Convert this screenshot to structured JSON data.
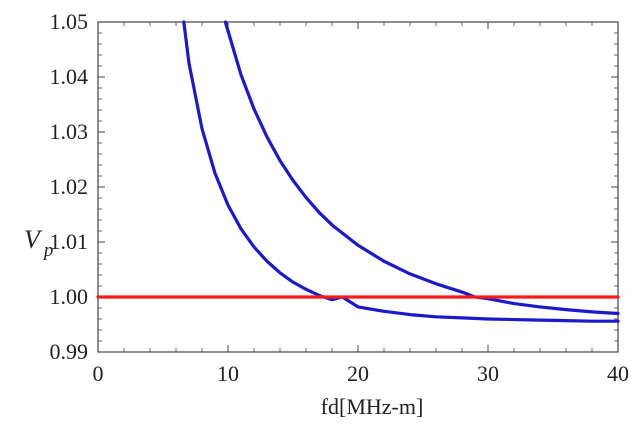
{
  "chart_data": {
    "type": "line",
    "title": "",
    "xlabel": "fd[MHz-m]",
    "ylabel": {
      "main": "V",
      "sub": "p"
    },
    "xlim": [
      0,
      40
    ],
    "ylim": [
      0.99,
      1.05
    ],
    "xticks": [
      0,
      10,
      20,
      30,
      40
    ],
    "xtick_labels": [
      "0",
      "10",
      "20",
      "30",
      "40"
    ],
    "yticks": [
      0.99,
      1.0,
      1.01,
      1.02,
      1.03,
      1.04,
      1.05
    ],
    "ytick_labels": [
      "0.99",
      "1.00",
      "1.01",
      "1.02",
      "1.03",
      "1.04",
      "1.05"
    ],
    "grid": false,
    "legend": "none",
    "colors": {
      "series": "#1a1acc",
      "reference": "#ff1a1a",
      "frame": "#444444"
    },
    "series": [
      {
        "x": [
          6.6,
          7,
          8,
          9,
          10,
          11,
          12,
          13,
          14,
          15,
          16,
          17,
          18,
          18.8,
          20,
          22,
          24,
          26,
          28,
          30,
          32,
          34,
          36,
          38,
          40
        ],
        "y": [
          1.05,
          1.0425,
          1.0306,
          1.0225,
          1.0167,
          1.0124,
          1.0091,
          1.0065,
          1.0044,
          1.0027,
          1.0014,
          1.0003,
          0.9995,
          1.0,
          0.9982,
          0.9974,
          0.9968,
          0.9964,
          0.9962,
          0.996,
          0.9959,
          0.9958,
          0.9957,
          0.9956,
          0.9956
        ],
        "color": "#1a1acc"
      },
      {
        "x": [
          9.8,
          11,
          12,
          13,
          14,
          15,
          16,
          17,
          18,
          20,
          22,
          24,
          26,
          28,
          29,
          30,
          32,
          34,
          36,
          38,
          40
        ],
        "y": [
          1.05,
          1.0404,
          1.0342,
          1.0291,
          1.0248,
          1.0212,
          1.0181,
          1.0154,
          1.0131,
          1.0094,
          1.0065,
          1.0042,
          1.0024,
          1.0009,
          1.0,
          0.9997,
          0.9988,
          0.9982,
          0.9977,
          0.9973,
          0.997
        ],
        "color": "#1a1acc"
      },
      {
        "x": [
          0,
          40
        ],
        "y": [
          1.0,
          1.0
        ],
        "color": "#ff1a1a"
      }
    ]
  }
}
